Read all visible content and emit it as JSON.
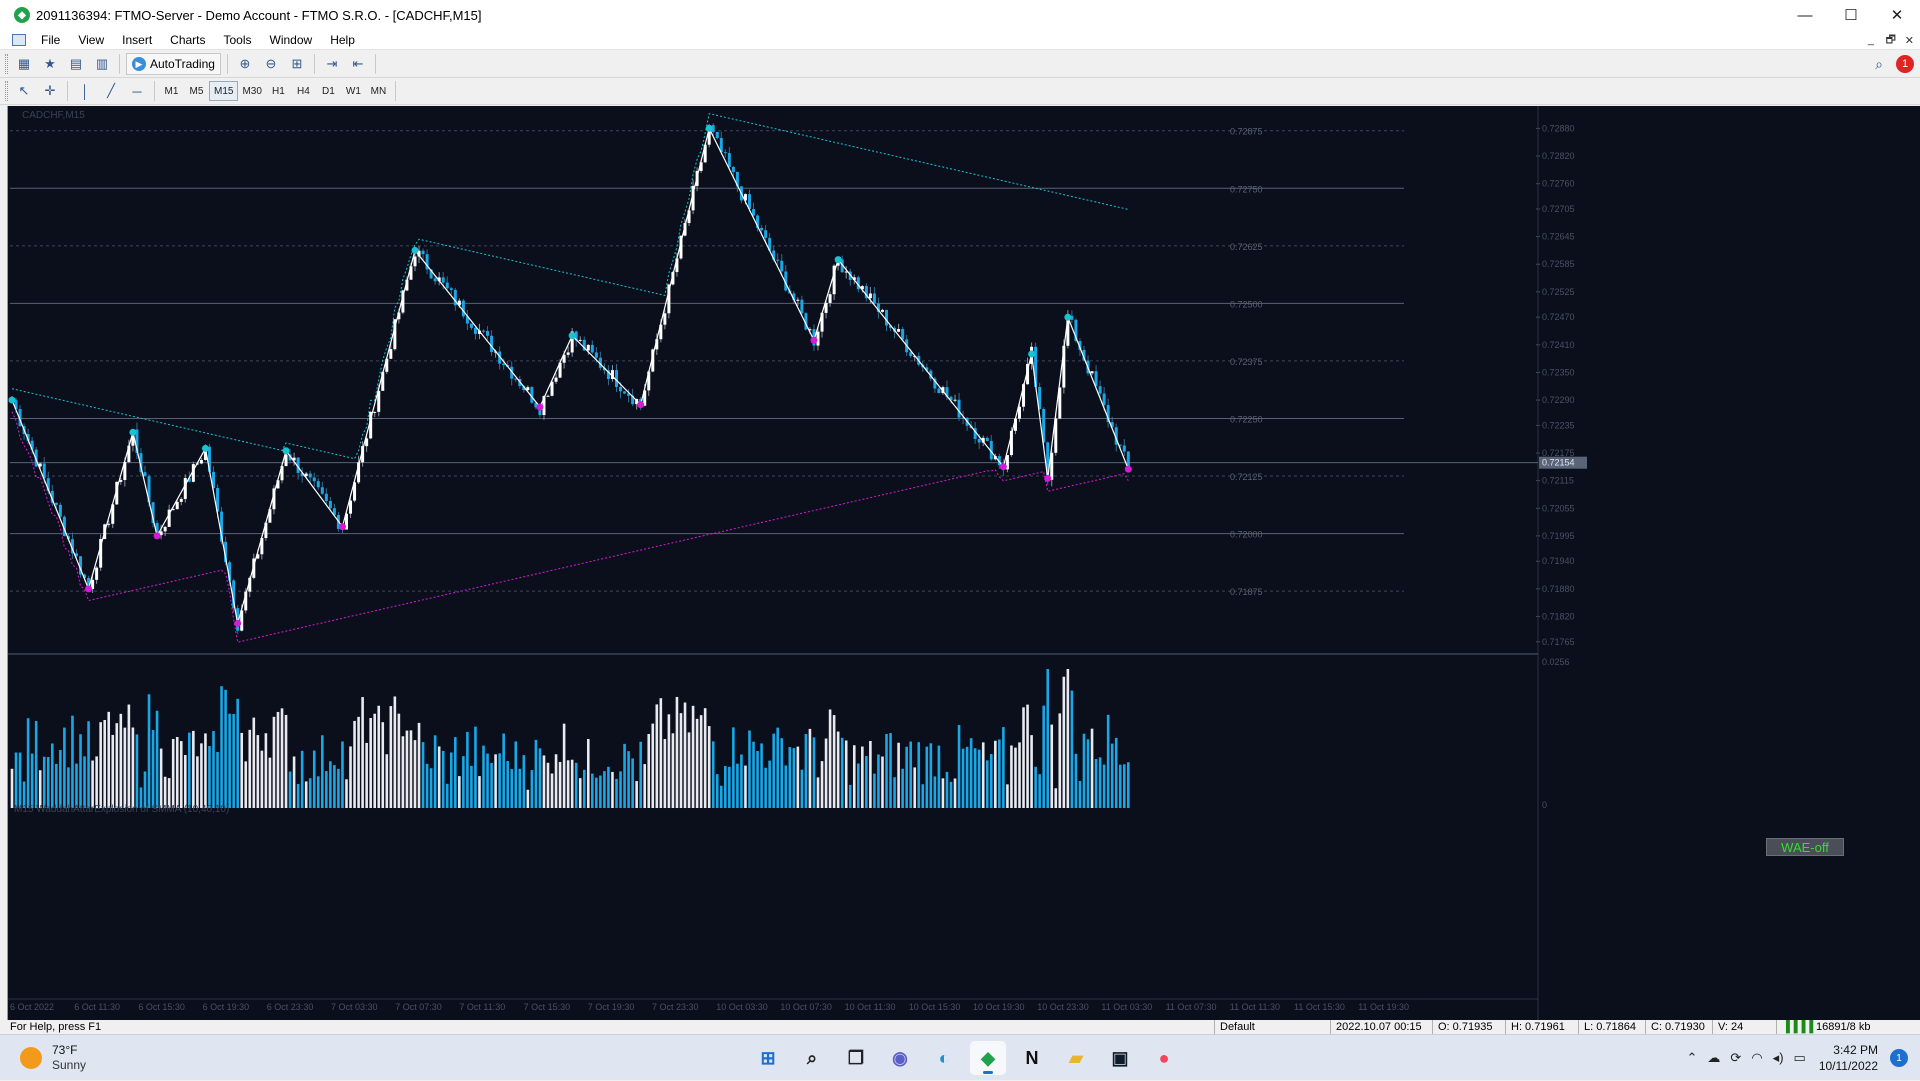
{
  "window": {
    "title": "2091136394: FTMO-Server - Demo Account - FTMO S.R.O. - [CADCHF,M15]",
    "app_icon": "metatrader-icon",
    "buttons": [
      "—",
      "☐",
      "✕"
    ]
  },
  "menu": {
    "items": [
      "File",
      "View",
      "Insert",
      "Charts",
      "Tools",
      "Window",
      "Help"
    ],
    "mdi_buttons": [
      "_",
      "🗗",
      "✕"
    ]
  },
  "toolbar": {
    "autotrading_label": "AutoTrading",
    "timeframes": [
      "M1",
      "M5",
      "M15",
      "M30",
      "H1",
      "H4",
      "D1",
      "W1",
      "MN"
    ],
    "active_timeframe": "M15",
    "notification_count": "1"
  },
  "chart": {
    "symbol_label": "CADCHF,M15",
    "indicator_label": "M15 WaddahAttarExplosion of SMMA (10,40,10)",
    "wae_button": "WAE-off",
    "colors": {
      "background": "#0b0f1c",
      "bull": "#ffffff",
      "bear": "#19a7e6",
      "resistance": "#19c3d0",
      "support": "#d61bd6",
      "grid": "#5a6070"
    }
  },
  "chart_data": {
    "type": "candlestick",
    "symbol": "CADCHF",
    "timeframe": "M15",
    "price_axis_ticks": [
      "0.72880",
      "0.72820",
      "0.72760",
      "0.72705",
      "0.72645",
      "0.72585",
      "0.72525",
      "0.72470",
      "0.72410",
      "0.72350",
      "0.72290",
      "0.72235",
      "0.72175",
      "0.72115",
      "0.72055",
      "0.71995",
      "0.71940",
      "0.71880",
      "0.71820",
      "0.71765"
    ],
    "price_levels": [
      "0.72875",
      "0.72750",
      "0.72625",
      "0.72500",
      "0.72375",
      "0.72250",
      "0.72125",
      "0.72000",
      "0.71875"
    ],
    "current_price_label": "0.72154",
    "indicator_axis_ticks": [
      "0.0256",
      "0"
    ],
    "time_labels": [
      "6 Oct 2022",
      "6 Oct 11:30",
      "6 Oct 15:30",
      "6 Oct 19:30",
      "6 Oct 23:30",
      "7 Oct 03:30",
      "7 Oct 07:30",
      "7 Oct 11:30",
      "7 Oct 15:30",
      "7 Oct 19:30",
      "7 Oct 23:30",
      "10 Oct 03:30",
      "10 Oct 07:30",
      "10 Oct 11:30",
      "10 Oct 15:30",
      "10 Oct 19:30",
      "10 Oct 23:30",
      "11 Oct 03:30",
      "11 Oct 07:30",
      "11 Oct 11:30",
      "11 Oct 15:30",
      "11 Oct 19:30"
    ],
    "zigzag_pivots": [
      {
        "t": 0,
        "p": 0.7229
      },
      {
        "t": 19,
        "p": 0.7188
      },
      {
        "t": 30,
        "p": 0.7222
      },
      {
        "t": 36,
        "p": 0.71995
      },
      {
        "t": 48,
        "p": 0.72185
      },
      {
        "t": 56,
        "p": 0.71805
      },
      {
        "t": 68,
        "p": 0.7218
      },
      {
        "t": 82,
        "p": 0.72015
      },
      {
        "t": 100,
        "p": 0.72615
      },
      {
        "t": 131,
        "p": 0.72275
      },
      {
        "t": 139,
        "p": 0.7243
      },
      {
        "t": 156,
        "p": 0.7228
      },
      {
        "t": 173,
        "p": 0.7288
      },
      {
        "t": 199,
        "p": 0.7242
      },
      {
        "t": 205,
        "p": 0.72595
      },
      {
        "t": 246,
        "p": 0.72145
      },
      {
        "t": 253,
        "p": 0.7239
      },
      {
        "t": 257,
        "p": 0.7212
      },
      {
        "t": 262,
        "p": 0.7247
      },
      {
        "t": 277,
        "p": 0.7214
      }
    ],
    "last_ohlc": {
      "time": "2022.10.07 00:15",
      "open": "0.71935",
      "high": "0.71961",
      "low": "0.71864",
      "close": "0.71930",
      "volume": "24"
    }
  },
  "status": {
    "help": "For Help, press F1",
    "profile": "Default",
    "time": "2022.10.07 00:15",
    "open": "O: 0.71935",
    "high": "H: 0.71961",
    "low": "L: 0.71864",
    "close": "C: 0.71930",
    "volume": "V: 24",
    "traffic": "16891/8 kb"
  },
  "taskbar": {
    "weather_temp": "73°F",
    "weather_desc": "Sunny",
    "apps": [
      {
        "name": "start-icon",
        "glyph": "⊞",
        "color": "#1f6fd1"
      },
      {
        "name": "search-icon",
        "glyph": "⌕",
        "color": "#222"
      },
      {
        "name": "task-view-icon",
        "glyph": "❐",
        "color": "#222"
      },
      {
        "name": "teams-icon",
        "glyph": "◉",
        "color": "#5b5fc7"
      },
      {
        "name": "edge-icon",
        "glyph": "◐",
        "color": "#1f8fd6"
      },
      {
        "name": "metatrader-icon",
        "glyph": "◆",
        "color": "#1fa24a"
      },
      {
        "name": "notion-icon",
        "glyph": "N",
        "color": "#111"
      },
      {
        "name": "file-explorer-icon",
        "glyph": "▰",
        "color": "#e8b62c"
      },
      {
        "name": "terminal-icon",
        "glyph": "▣",
        "color": "#0d1b2a"
      },
      {
        "name": "tinder-icon",
        "glyph": "●",
        "color": "#f0455a"
      }
    ],
    "time": "3:42 PM",
    "date": "10/11/2022",
    "notification_count": "1"
  }
}
